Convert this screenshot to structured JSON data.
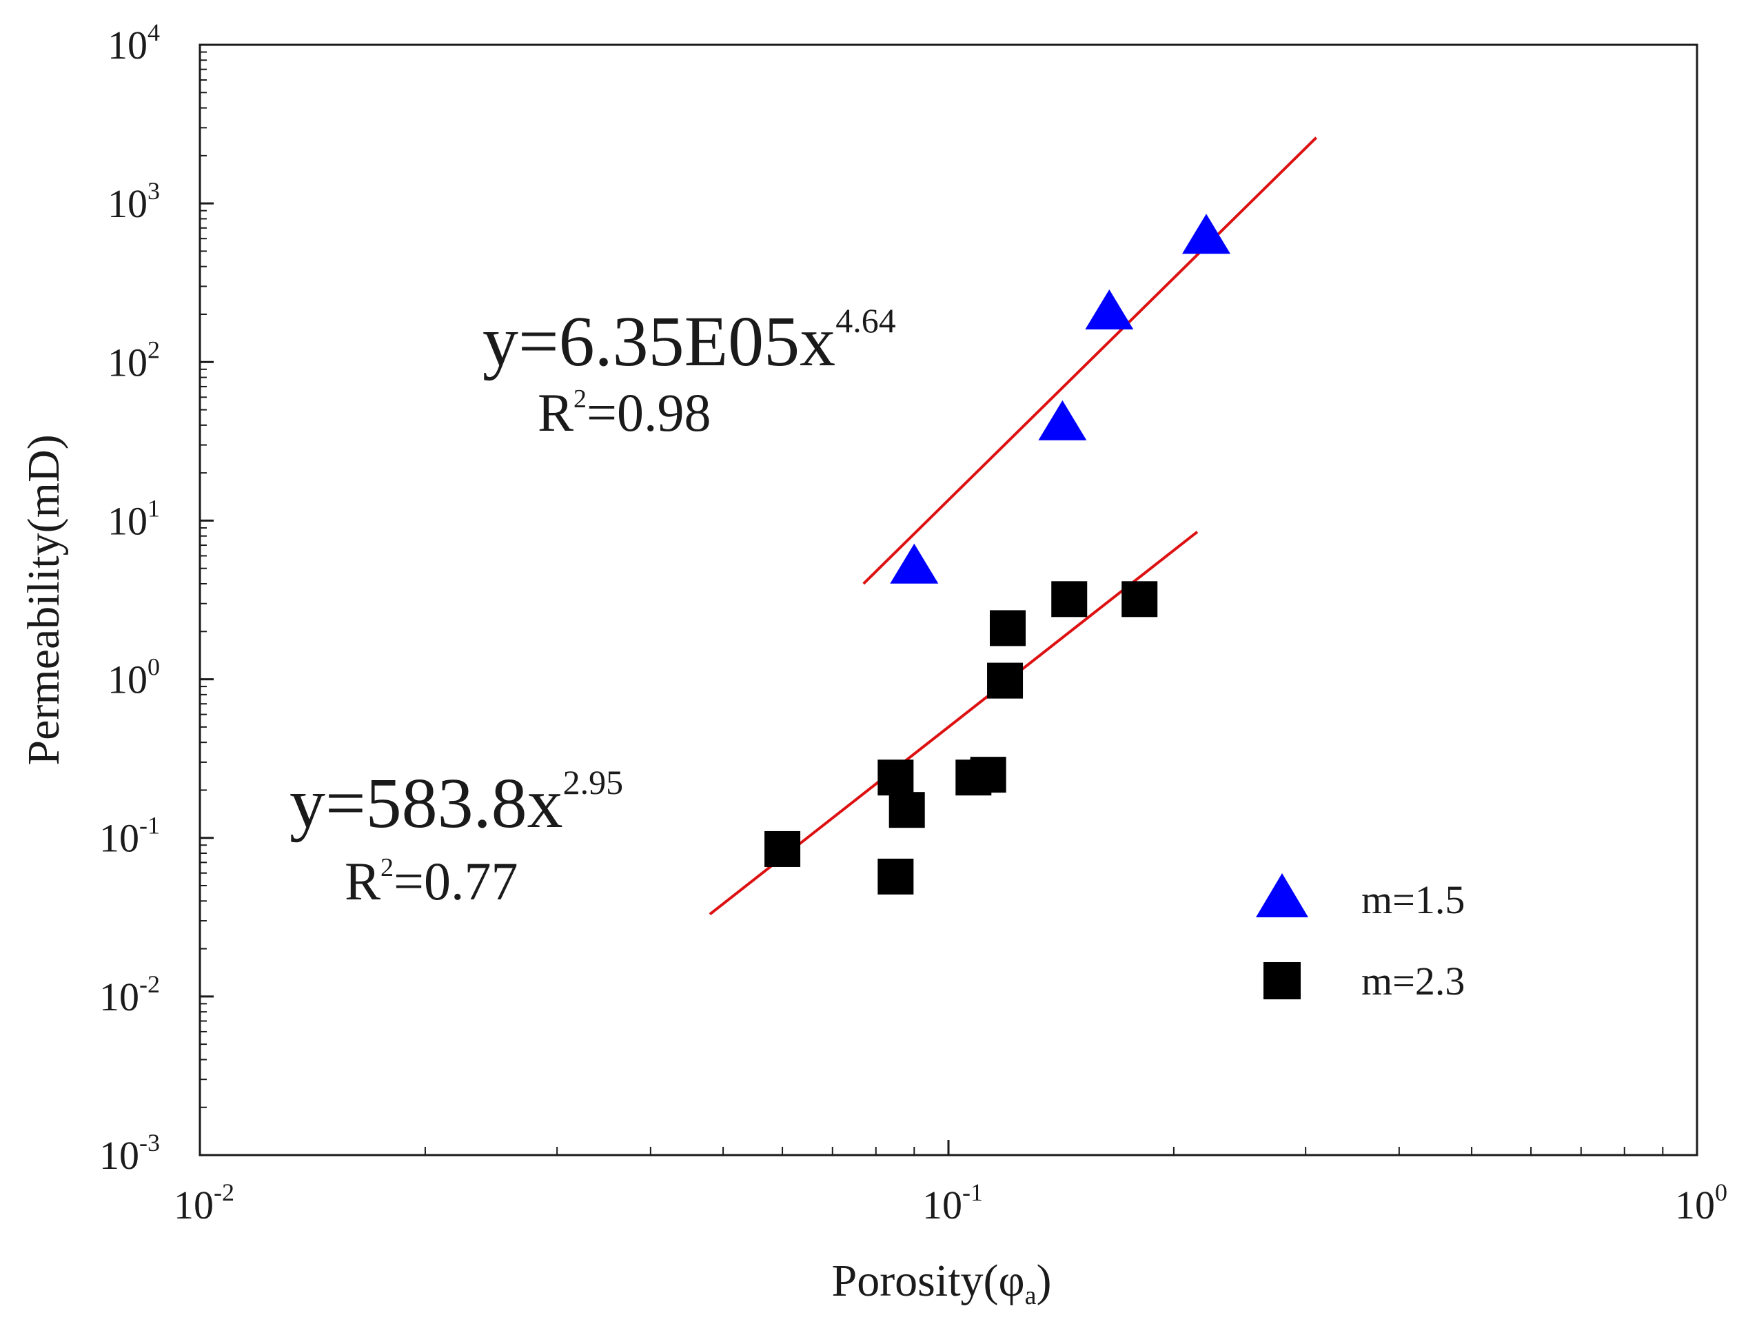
{
  "chart_data": {
    "type": "scatter",
    "title": "",
    "xlabel": {
      "base": "Porosity(φ",
      "sub": "a",
      "close": ")"
    },
    "ylabel": "Permeability(mD)",
    "xscale": "log",
    "yscale": "log",
    "xlim": [
      0.01,
      1
    ],
    "ylim": [
      0.001,
      10000
    ],
    "grid": false,
    "x_ticks": [
      {
        "value": 0.01,
        "base": "10",
        "exp": "-2"
      },
      {
        "value": 0.1,
        "base": "10",
        "exp": "-1"
      },
      {
        "value": 1,
        "base": "10",
        "exp": "0"
      }
    ],
    "y_ticks": [
      {
        "value": 0.001,
        "base": "10",
        "exp": "-3"
      },
      {
        "value": 0.01,
        "base": "10",
        "exp": "-2"
      },
      {
        "value": 0.1,
        "base": "10",
        "exp": "-1"
      },
      {
        "value": 1,
        "base": "10",
        "exp": "0"
      },
      {
        "value": 10,
        "base": "10",
        "exp": "1"
      },
      {
        "value": 100,
        "base": "10",
        "exp": "2"
      },
      {
        "value": 1000,
        "base": "10",
        "exp": "3"
      },
      {
        "value": 10000,
        "base": "10",
        "exp": "4"
      }
    ],
    "series": [
      {
        "name": "m=1.5",
        "marker": "triangle",
        "color": "#0000ff",
        "points": [
          {
            "x": 0.09,
            "y": 5.0
          },
          {
            "x": 0.142,
            "y": 40
          },
          {
            "x": 0.164,
            "y": 200
          },
          {
            "x": 0.221,
            "y": 600
          }
        ]
      },
      {
        "name": "m=2.3",
        "marker": "square",
        "color": "#000000",
        "points": [
          {
            "x": 0.06,
            "y": 0.085
          },
          {
            "x": 0.085,
            "y": 0.057
          },
          {
            "x": 0.085,
            "y": 0.24
          },
          {
            "x": 0.088,
            "y": 0.15
          },
          {
            "x": 0.108,
            "y": 0.24
          },
          {
            "x": 0.113,
            "y": 0.25
          },
          {
            "x": 0.119,
            "y": 0.98
          },
          {
            "x": 0.12,
            "y": 2.1
          },
          {
            "x": 0.145,
            "y": 3.2
          },
          {
            "x": 0.18,
            "y": 3.2
          }
        ]
      }
    ],
    "fit_lines": [
      {
        "series": "m=1.5",
        "color": "#dd1111",
        "x_range": [
          0.077,
          0.31
        ],
        "y_range": [
          4.0,
          2600
        ],
        "equation": {
          "prefix": "y=6.35E05x",
          "exp": "4.64"
        },
        "r2": {
          "prefix": "R",
          "exp": "2",
          "value": "=0.98"
        }
      },
      {
        "series": "m=2.3",
        "color": "#dd1111",
        "x_range": [
          0.048,
          0.215
        ],
        "y_range": [
          0.033,
          8.5
        ],
        "equation": {
          "prefix": "y=583.8x",
          "exp": "2.95"
        },
        "r2": {
          "prefix": "R",
          "exp": "2",
          "value": "=0.77"
        }
      }
    ],
    "legend": {
      "position": "bottom-right",
      "entries": [
        {
          "label": "m=1.5",
          "marker": "triangle",
          "color": "#0000ff"
        },
        {
          "label": "m=2.3",
          "marker": "square",
          "color": "#000000"
        }
      ]
    }
  }
}
